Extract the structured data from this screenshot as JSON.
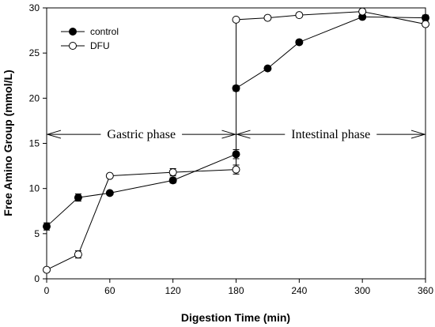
{
  "chart_data": {
    "type": "line",
    "xlabel": "Digestion Time (min)",
    "ylabel": "Free Amino Group (mmol/L)",
    "xlim": [
      0,
      360
    ],
    "ylim": [
      0,
      30
    ],
    "xticks": [
      0,
      60,
      120,
      180,
      240,
      300,
      360
    ],
    "yticks": [
      0,
      5,
      10,
      15,
      20,
      25,
      30
    ],
    "grid": false,
    "legend_position": "top-left",
    "series": [
      {
        "name": "control",
        "marker": "filled-circle",
        "color": "#000000",
        "x": [
          0,
          30,
          60,
          120,
          180,
          180,
          210,
          240,
          300,
          360
        ],
        "y": [
          5.8,
          9.0,
          9.5,
          10.9,
          13.8,
          21.1,
          23.3,
          26.2,
          29.0,
          28.9
        ],
        "error": [
          0.4,
          0.4,
          0.2,
          0.3,
          0.5,
          0.3,
          0.2,
          0.2,
          0.2,
          0.3
        ]
      },
      {
        "name": "DFU",
        "marker": "open-circle",
        "color": "#000000",
        "x": [
          0,
          30,
          60,
          120,
          180,
          180,
          210,
          240,
          300,
          360
        ],
        "y": [
          1.0,
          2.7,
          11.4,
          11.8,
          12.1,
          28.7,
          28.9,
          29.2,
          29.6,
          28.2
        ],
        "error": [
          0.2,
          0.4,
          0.2,
          0.4,
          0.5,
          0.2,
          0.2,
          0.2,
          0.2,
          0.2
        ]
      }
    ],
    "annotations": [
      {
        "text": "Gastric phase",
        "x_start": 0,
        "x_end": 180,
        "y": 16
      },
      {
        "text": "Intestinal phase",
        "x_start": 180,
        "x_end": 360,
        "y": 16
      }
    ],
    "divider_x": 180
  }
}
